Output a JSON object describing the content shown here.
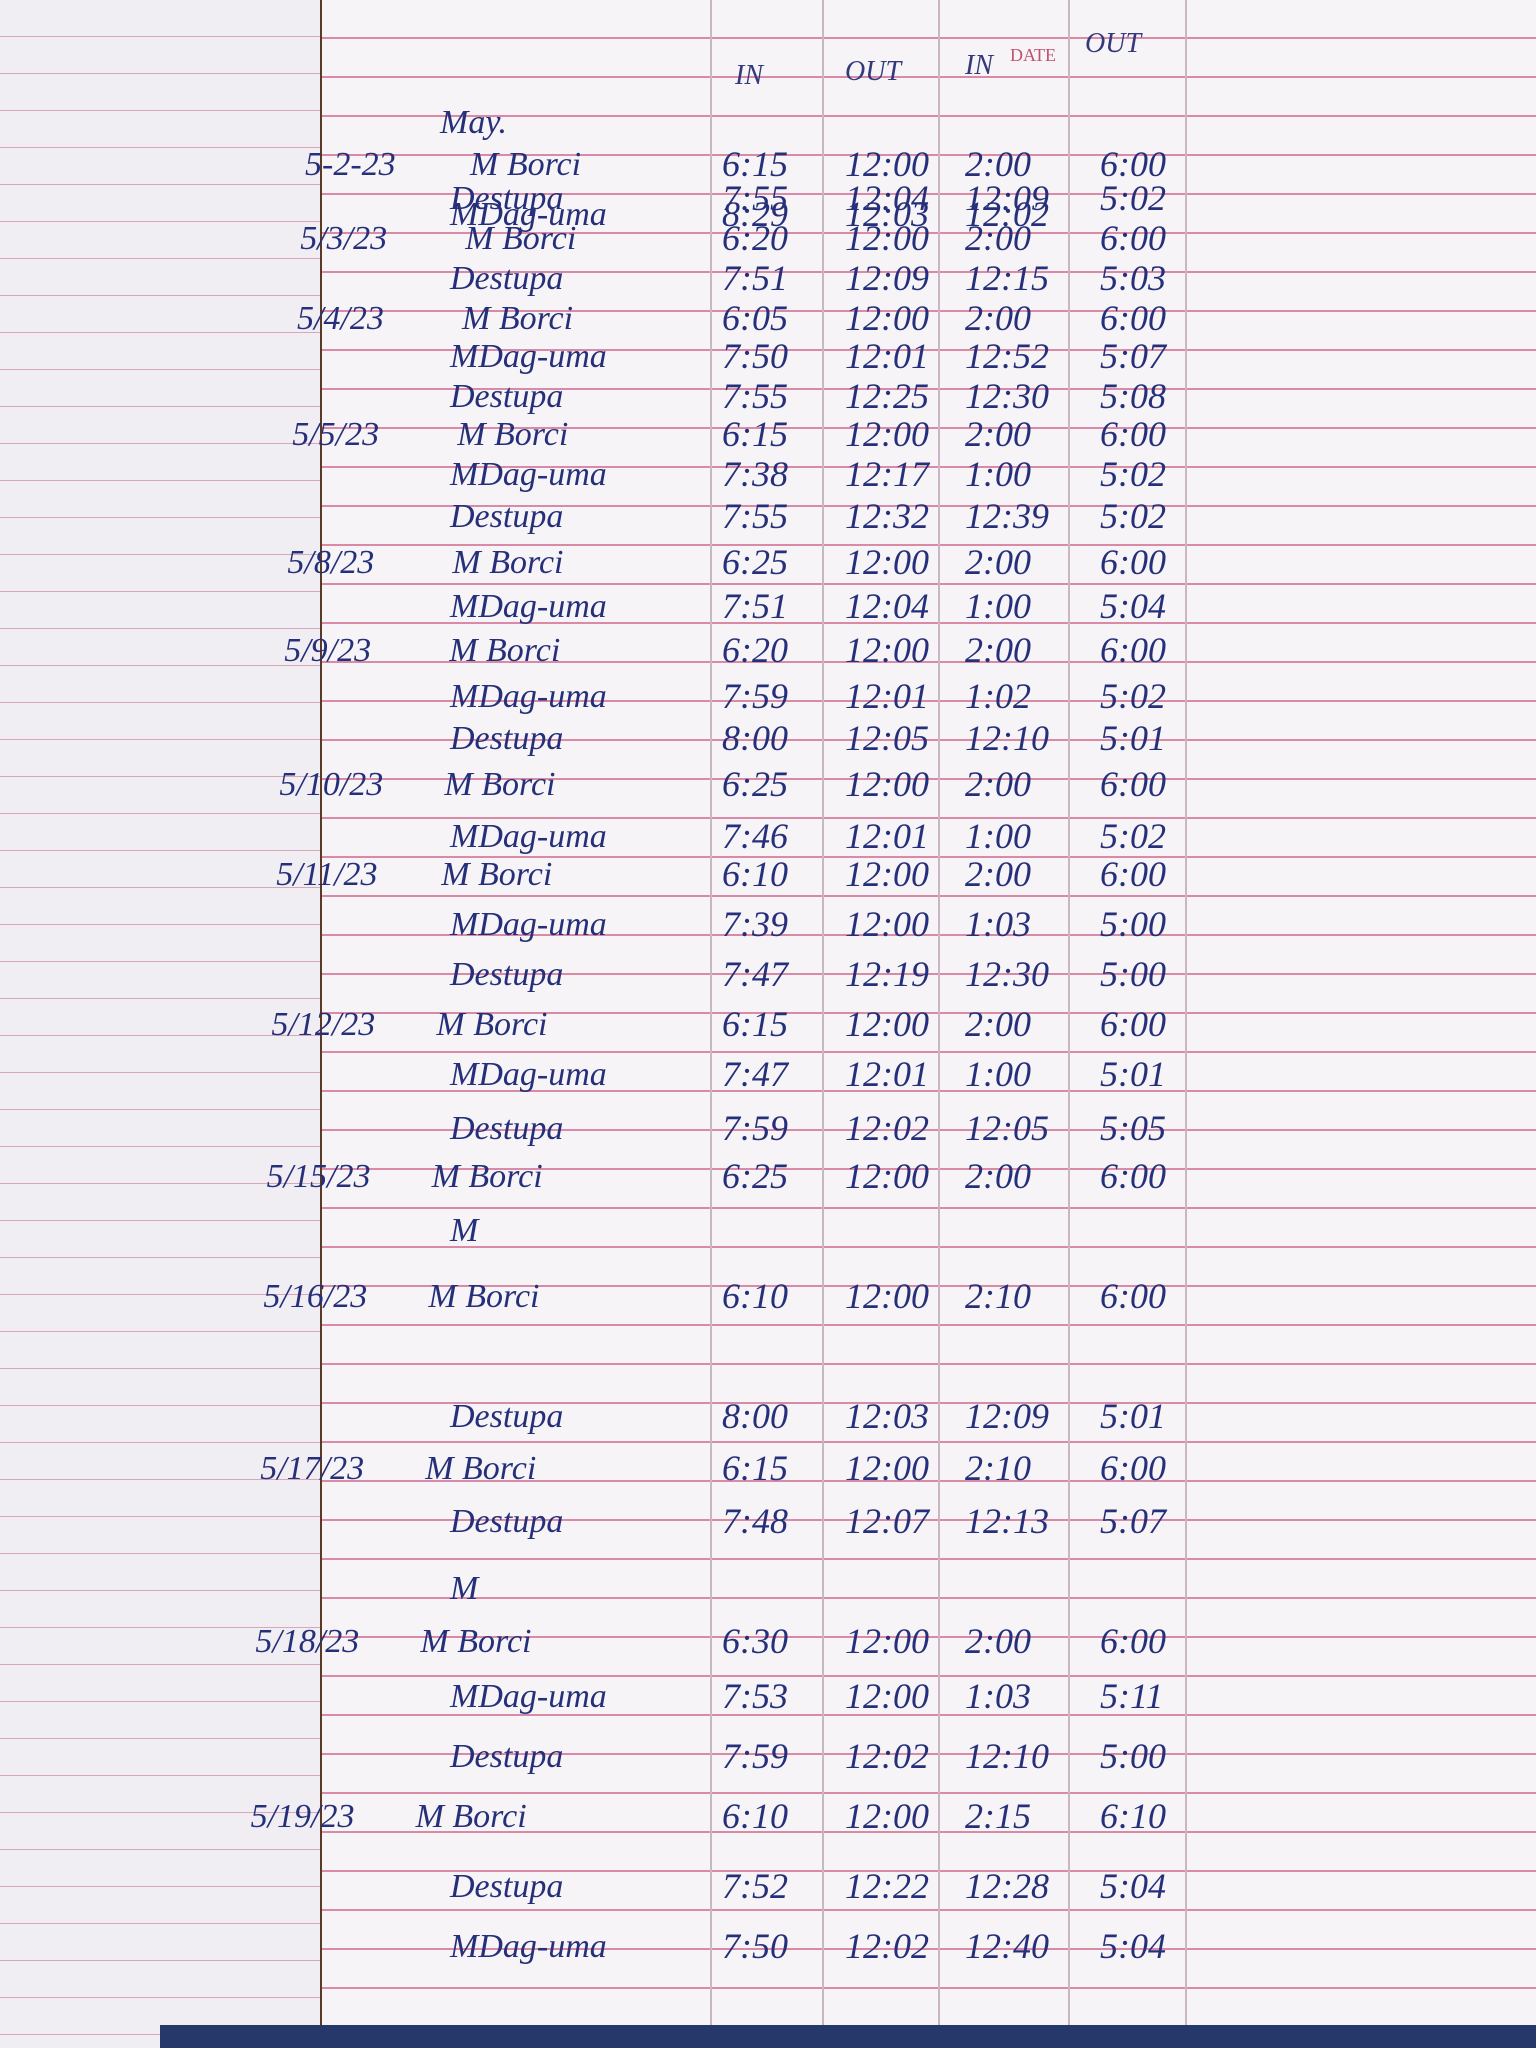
{
  "header": {
    "month": "May.",
    "columns": [
      "IN",
      "OUT",
      "IN",
      "OUT"
    ],
    "date_label": "DATE"
  },
  "rows": [
    {
      "date": "5-2-23",
      "name": "M Borci",
      "times": [
        "6:15",
        "12:00",
        "2:00",
        "6:00"
      ]
    },
    {
      "name": "Destupa",
      "times": [
        "7:55",
        "12:04",
        "12:09",
        "5:02"
      ]
    },
    {
      "name": "MDag-uma",
      "times": [
        "8:29",
        "12:03",
        "12:02"
      ]
    },
    {
      "date": "5/3/23",
      "name": "M Borci",
      "times": [
        "6:20",
        "12:00",
        "2:00",
        "6:00"
      ]
    },
    {
      "name": "Destupa",
      "times": [
        "7:51",
        "12:09",
        "12:15",
        "5:03"
      ]
    },
    {
      "date": "5/4/23",
      "name": "M Borci",
      "times": [
        "6:05",
        "12:00",
        "2:00",
        "6:00"
      ]
    },
    {
      "name": "MDag-uma",
      "times": [
        "7:50",
        "12:01",
        "12:52",
        "5:07"
      ]
    },
    {
      "name": "Destupa",
      "times": [
        "7:55",
        "12:25",
        "12:30",
        "5:08"
      ]
    },
    {
      "date": "5/5/23",
      "name": "M Borci",
      "times": [
        "6:15",
        "12:00",
        "2:00",
        "6:00"
      ]
    },
    {
      "name": "MDag-uma",
      "times": [
        "7:38",
        "12:17",
        "1:00",
        "5:02"
      ]
    },
    {
      "name": "Destupa",
      "times": [
        "7:55",
        "12:32",
        "12:39",
        "5:02"
      ]
    },
    {
      "date": "5/8/23",
      "name": "M Borci",
      "times": [
        "6:25",
        "12:00",
        "2:00",
        "6:00"
      ]
    },
    {
      "name": "MDag-uma",
      "times": [
        "7:51",
        "12:04",
        "1:00",
        "5:04"
      ]
    },
    {
      "date": "5/9/23",
      "name": "M Borci",
      "times": [
        "6:20",
        "12:00",
        "2:00",
        "6:00"
      ]
    },
    {
      "name": "MDag-uma",
      "times": [
        "7:59",
        "12:01",
        "1:02",
        "5:02"
      ]
    },
    {
      "name": "Destupa",
      "times": [
        "8:00",
        "12:05",
        "12:10",
        "5:01"
      ]
    },
    {
      "date": "5/10/23",
      "name": "M Borci",
      "times": [
        "6:25",
        "12:00",
        "2:00",
        "6:00"
      ]
    },
    {
      "name": "MDag-uma",
      "times": [
        "7:46",
        "12:01",
        "1:00",
        "5:02"
      ]
    },
    {
      "date": "5/11/23",
      "name": "M Borci",
      "times": [
        "6:10",
        "12:00",
        "2:00",
        "6:00"
      ]
    },
    {
      "name": "MDag-uma",
      "times": [
        "7:39",
        "12:00",
        "1:03",
        "5:00"
      ]
    },
    {
      "name": "Destupa",
      "times": [
        "7:47",
        "12:19",
        "12:30",
        "5:00"
      ]
    },
    {
      "date": "5/12/23",
      "name": "M Borci",
      "times": [
        "6:15",
        "12:00",
        "2:00",
        "6:00"
      ]
    },
    {
      "name": "MDag-uma",
      "times": [
        "7:47",
        "12:01",
        "1:00",
        "5:01"
      ]
    },
    {
      "name": "Destupa",
      "times": [
        "7:59",
        "12:02",
        "12:05",
        "5:05"
      ]
    },
    {
      "date": "5/15/23",
      "name": "M Borci",
      "times": [
        "6:25",
        "12:00",
        "2:00",
        "6:00"
      ]
    },
    {
      "name": "M"
    },
    {
      "date": "5/16/23",
      "name": "M Borci",
      "times": [
        "6:10",
        "12:00",
        "2:10",
        "6:00"
      ]
    },
    {
      "name": "Destupa",
      "times": [
        "8:00",
        "12:03",
        "12:09",
        "5:01"
      ]
    },
    {
      "date": "5/17/23",
      "name": "M Borci",
      "times": [
        "6:15",
        "12:00",
        "2:10",
        "6:00"
      ]
    },
    {
      "name": "Destupa",
      "times": [
        "7:48",
        "12:07",
        "12:13",
        "5:07"
      ]
    },
    {
      "name": "M"
    },
    {
      "date": "5/18/23",
      "name": "M Borci",
      "times": [
        "6:30",
        "12:00",
        "2:00",
        "6:00"
      ]
    },
    {
      "name": "MDag-uma",
      "times": [
        "7:53",
        "12:00",
        "1:03",
        "5:11"
      ]
    },
    {
      "name": "Destupa",
      "times": [
        "7:59",
        "12:02",
        "12:10",
        "5:00"
      ]
    },
    {
      "date": "5/19/23",
      "name": "M Borci",
      "times": [
        "6:10",
        "12:00",
        "2:15",
        "6:10"
      ]
    },
    {
      "name": "Destupa",
      "times": [
        "7:52",
        "12:22",
        "12:28",
        "5:04"
      ]
    },
    {
      "name": "MDag-uma",
      "times": [
        "7:50",
        "12:02",
        "12:40",
        "5:04"
      ]
    }
  ]
}
